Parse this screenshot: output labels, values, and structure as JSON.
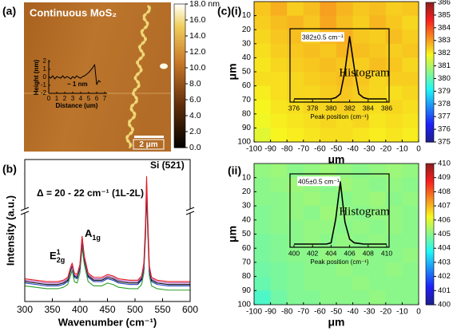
{
  "chart_data": [
    {
      "type": "image",
      "panel": "(a)",
      "title": "Continuous MoS₂",
      "scale_bar": "2 μm",
      "colorbar": {
        "lim": [
          0,
          18
        ],
        "ticks": [
          {
            "value": 0,
            "label": "0.0"
          },
          {
            "value": 2,
            "label": "2.0"
          },
          {
            "value": 4,
            "label": "4.0"
          },
          {
            "value": 6,
            "label": "6.0"
          },
          {
            "value": 8,
            "label": "8.0"
          },
          {
            "value": 10,
            "label": "10.0"
          },
          {
            "value": 12,
            "label": "12.0"
          },
          {
            "value": 14,
            "label": "14.0"
          },
          {
            "value": 16,
            "label": "16.0"
          },
          {
            "value": 18,
            "label": "18.0 nm"
          }
        ]
      },
      "inset": {
        "type": "line",
        "x_label": "Distance (um)",
        "y_label": "Height (nm)",
        "annotation": "~ 1 nm",
        "xlim": [
          0,
          7
        ],
        "ylim": [
          -2,
          2
        ],
        "xticks": [
          0,
          1,
          2,
          3,
          4,
          5,
          6,
          7
        ],
        "yticks": [
          -2,
          -1,
          0,
          1,
          2
        ],
        "x": [
          0,
          0.25,
          0.5,
          0.75,
          1,
          1.25,
          1.5,
          1.75,
          2,
          2.25,
          2.5,
          2.75,
          3,
          3.25,
          3.5,
          3.75,
          4,
          4.25,
          4.5,
          4.75,
          5,
          5.25,
          5.5,
          5.75,
          6,
          6.25,
          6.5
        ],
        "series": [
          {
            "color": "#000000",
            "values": [
              0.1,
              -0.1,
              0.2,
              -0.2,
              0.1,
              0,
              -0.1,
              0.2,
              -0.1,
              0.1,
              0,
              -0.2,
              0.1,
              -0.1,
              0.2,
              0,
              -0.1,
              0.1,
              0.2,
              0.4,
              0.6,
              0.9,
              1.2,
              1.6,
              -0.9,
              -0.4,
              -0.6
            ]
          }
        ]
      }
    },
    {
      "type": "line",
      "panel": "(b)",
      "x_label": "Wavenumber (cm⁻¹)",
      "y_label": "Intensity (a.u.)",
      "xlim": [
        300,
        600
      ],
      "ylim": [
        0,
        100
      ],
      "xticks": [
        300,
        350,
        400,
        450,
        500,
        550,
        600
      ],
      "annotations": [
        {
          "text": "Δ = 20 - 22 cm⁻¹ (1L-2L)"
        },
        {
          "text": "Si (521)"
        },
        {
          "base": "A",
          "sub": "1g"
        },
        {
          "base": "E",
          "sup": "1",
          "sub": "2g"
        }
      ],
      "x": [
        300,
        320,
        340,
        360,
        370,
        378,
        383,
        386,
        390,
        395,
        400,
        404,
        408,
        415,
        425,
        440,
        450,
        460,
        470,
        490,
        505,
        512,
        516,
        519,
        521,
        523,
        526,
        530,
        540,
        560,
        580,
        600
      ],
      "series": [
        {
          "color": "#2ca02c",
          "values": [
            11,
            10,
            9,
            9,
            10,
            12,
            18,
            22,
            14,
            13,
            20,
            38,
            26,
            14,
            11,
            11,
            13,
            12,
            10,
            9,
            9,
            12,
            20,
            45,
            76,
            50,
            18,
            11,
            9,
            8,
            8,
            8
          ]
        },
        {
          "color": "#1f3fbf",
          "values": [
            13,
            12,
            11,
            11,
            12,
            14,
            21,
            25,
            17,
            16,
            23,
            42,
            29,
            17,
            14,
            14,
            16,
            15,
            13,
            12,
            12,
            15,
            23,
            48,
            80,
            53,
            21,
            14,
            12,
            11,
            11,
            11
          ]
        },
        {
          "color": "#000000",
          "values": [
            14,
            13,
            12,
            12,
            13,
            15,
            22,
            26,
            18,
            17,
            24,
            44,
            30,
            18,
            15,
            15,
            17,
            16,
            14,
            13,
            13,
            16,
            24,
            50,
            82,
            55,
            22,
            15,
            13,
            12,
            12,
            12
          ]
        },
        {
          "color": "#b05cc0",
          "values": [
            15,
            14,
            13,
            13,
            14,
            16,
            23,
            26,
            19,
            18,
            25,
            45,
            31,
            19,
            16,
            16,
            18,
            17,
            15,
            14,
            14,
            17,
            25,
            52,
            85,
            57,
            23,
            16,
            14,
            13,
            13,
            13
          ]
        },
        {
          "color": "#e41a1c",
          "values": [
            16,
            15,
            14,
            14,
            15,
            17,
            24,
            27,
            20,
            19,
            26,
            46,
            32,
            20,
            17,
            17,
            19,
            18,
            16,
            15,
            15,
            18,
            27,
            55,
            88,
            60,
            25,
            17,
            15,
            14,
            14,
            14
          ]
        }
      ]
    },
    {
      "type": "heatmap",
      "panel": "(c)(i)",
      "x_label": "μm",
      "y_label": "μm",
      "xlim": [
        -100,
        0
      ],
      "ylim": [
        0,
        100
      ],
      "y_inverted": true,
      "xticks": [
        -100,
        -90,
        -80,
        -70,
        -60,
        -50,
        -40,
        -30,
        -20,
        -10,
        0
      ],
      "yticks": [
        10,
        20,
        30,
        40,
        50,
        60,
        70,
        80,
        90,
        100
      ],
      "clim": [
        375,
        386
      ],
      "cticks": [
        375,
        376,
        377,
        378,
        379,
        380,
        381,
        382,
        383,
        384,
        385,
        386
      ],
      "values": [
        [
          382.5,
          382.8,
          382.4,
          382.6,
          383,
          382.7,
          382.5,
          382.6,
          382.4,
          382.5
        ],
        [
          382.4,
          382.6,
          382.7,
          382.5,
          382.9,
          382.6,
          382.4,
          382.7,
          382.5,
          382.3
        ],
        [
          382.3,
          382.5,
          382.6,
          382.4,
          382.7,
          382.8,
          382.5,
          382.4,
          382.6,
          382.4
        ],
        [
          382.2,
          382.4,
          382.5,
          382.6,
          382.5,
          382.7,
          382.6,
          382.5,
          382.4,
          382.5
        ],
        [
          382.1,
          382.3,
          382.4,
          382.5,
          382.6,
          382.5,
          382.4,
          382.6,
          382.5,
          382.3
        ],
        [
          382.2,
          382.2,
          382.3,
          382.4,
          382.5,
          382.6,
          382.5,
          382.3,
          382.4,
          382.4
        ],
        [
          382,
          382.2,
          382.3,
          382.3,
          382.4,
          382.5,
          382.4,
          382.3,
          382.2,
          382.3
        ],
        [
          381.9,
          382.1,
          382.2,
          382.3,
          382.3,
          382.4,
          382.3,
          382.2,
          382.3,
          382.2
        ],
        [
          381.8,
          382,
          382.1,
          382.2,
          382.3,
          382.2,
          382.3,
          382.1,
          382.2,
          382.1
        ],
        [
          381.6,
          381.9,
          382,
          382.1,
          382.2,
          382.2,
          382.1,
          382,
          382.1,
          382
        ]
      ],
      "inset": {
        "type": "line",
        "title": "Histogram",
        "annotation": "382±0.5 cm⁻¹",
        "x_label": "Peak position (cm⁻¹)",
        "xlim": [
          376,
          386
        ],
        "ylim": [
          0,
          1
        ],
        "xticks": [
          376,
          378,
          380,
          382,
          384,
          386
        ],
        "x": [
          376,
          376.5,
          377,
          377.5,
          378,
          378.5,
          379,
          379.5,
          380,
          380.5,
          381,
          381.5,
          382,
          382.5,
          383,
          383.5,
          384,
          384.5,
          385,
          385.5,
          386
        ],
        "series": [
          {
            "color": "#000000",
            "values": [
              0,
              0,
              0,
              0,
              0,
              0,
              0,
              0,
              0,
              0.02,
              0.08,
              0.45,
              1,
              0.5,
              0.08,
              0.02,
              0,
              0,
              0,
              0,
              0
            ]
          }
        ]
      }
    },
    {
      "type": "heatmap",
      "panel": "(ii)",
      "x_label": "μm",
      "y_label": "μm",
      "xlim": [
        -100,
        0
      ],
      "ylim": [
        0,
        100
      ],
      "y_inverted": true,
      "xticks": [
        -100,
        -90,
        -80,
        -70,
        -60,
        -50,
        -40,
        -30,
        -20,
        -10,
        0
      ],
      "yticks": [
        10,
        20,
        30,
        40,
        50,
        60,
        70,
        80,
        90,
        100
      ],
      "clim": [
        400,
        410
      ],
      "cticks": [
        400,
        401,
        402,
        403,
        404,
        405,
        406,
        407,
        408,
        409,
        410
      ],
      "values": [
        [
          405.1,
          405.2,
          405,
          405.1,
          405.2,
          405.1,
          405,
          405.1,
          405.2,
          405.1
        ],
        [
          405,
          405.1,
          405.2,
          405.1,
          405,
          405.2,
          405.1,
          405,
          405.1,
          405
        ],
        [
          405,
          405,
          405.1,
          405.2,
          405.1,
          405,
          405.1,
          405.2,
          405,
          405.1
        ],
        [
          404.9,
          405,
          405.1,
          405,
          405.2,
          405.1,
          405,
          405.1,
          405.1,
          405
        ],
        [
          404.9,
          405,
          405,
          405.1,
          405.1,
          405,
          405.1,
          405,
          405.1,
          405
        ],
        [
          404.8,
          404.9,
          405,
          405.1,
          405,
          405.1,
          405,
          405.1,
          405,
          405
        ],
        [
          404.8,
          404.9,
          405,
          405,
          405.1,
          405,
          405.1,
          405,
          405,
          405.1
        ],
        [
          404.7,
          404.8,
          404.9,
          405,
          405,
          405.1,
          405,
          405,
          405.1,
          405
        ],
        [
          404.6,
          404.8,
          404.9,
          405,
          405,
          405,
          405.1,
          405,
          405,
          405
        ],
        [
          404.3,
          404.7,
          404.9,
          404.9,
          405,
          405,
          405,
          405.1,
          405,
          405
        ]
      ],
      "inset": {
        "type": "line",
        "title": "Histogram",
        "annotation": "405±0.5 cm⁻¹",
        "x_label": "Peak position (cm⁻¹)",
        "xlim": [
          400,
          410
        ],
        "ylim": [
          0,
          1
        ],
        "xticks": [
          400,
          402,
          404,
          406,
          408,
          410
        ],
        "x": [
          400,
          400.5,
          401,
          401.5,
          402,
          402.5,
          403,
          403.5,
          404,
          404.5,
          405,
          405.5,
          406,
          406.5,
          407,
          407.5,
          408,
          408.5,
          409,
          409.5,
          410
        ],
        "series": [
          {
            "color": "#000000",
            "values": [
              0,
              0,
              0,
              0,
              0,
              0,
              0,
              0,
              0.02,
              0.4,
              1,
              0.35,
              0.08,
              0.02,
              0.01,
              0,
              0,
              0,
              0,
              0,
              0
            ]
          }
        ]
      }
    }
  ]
}
